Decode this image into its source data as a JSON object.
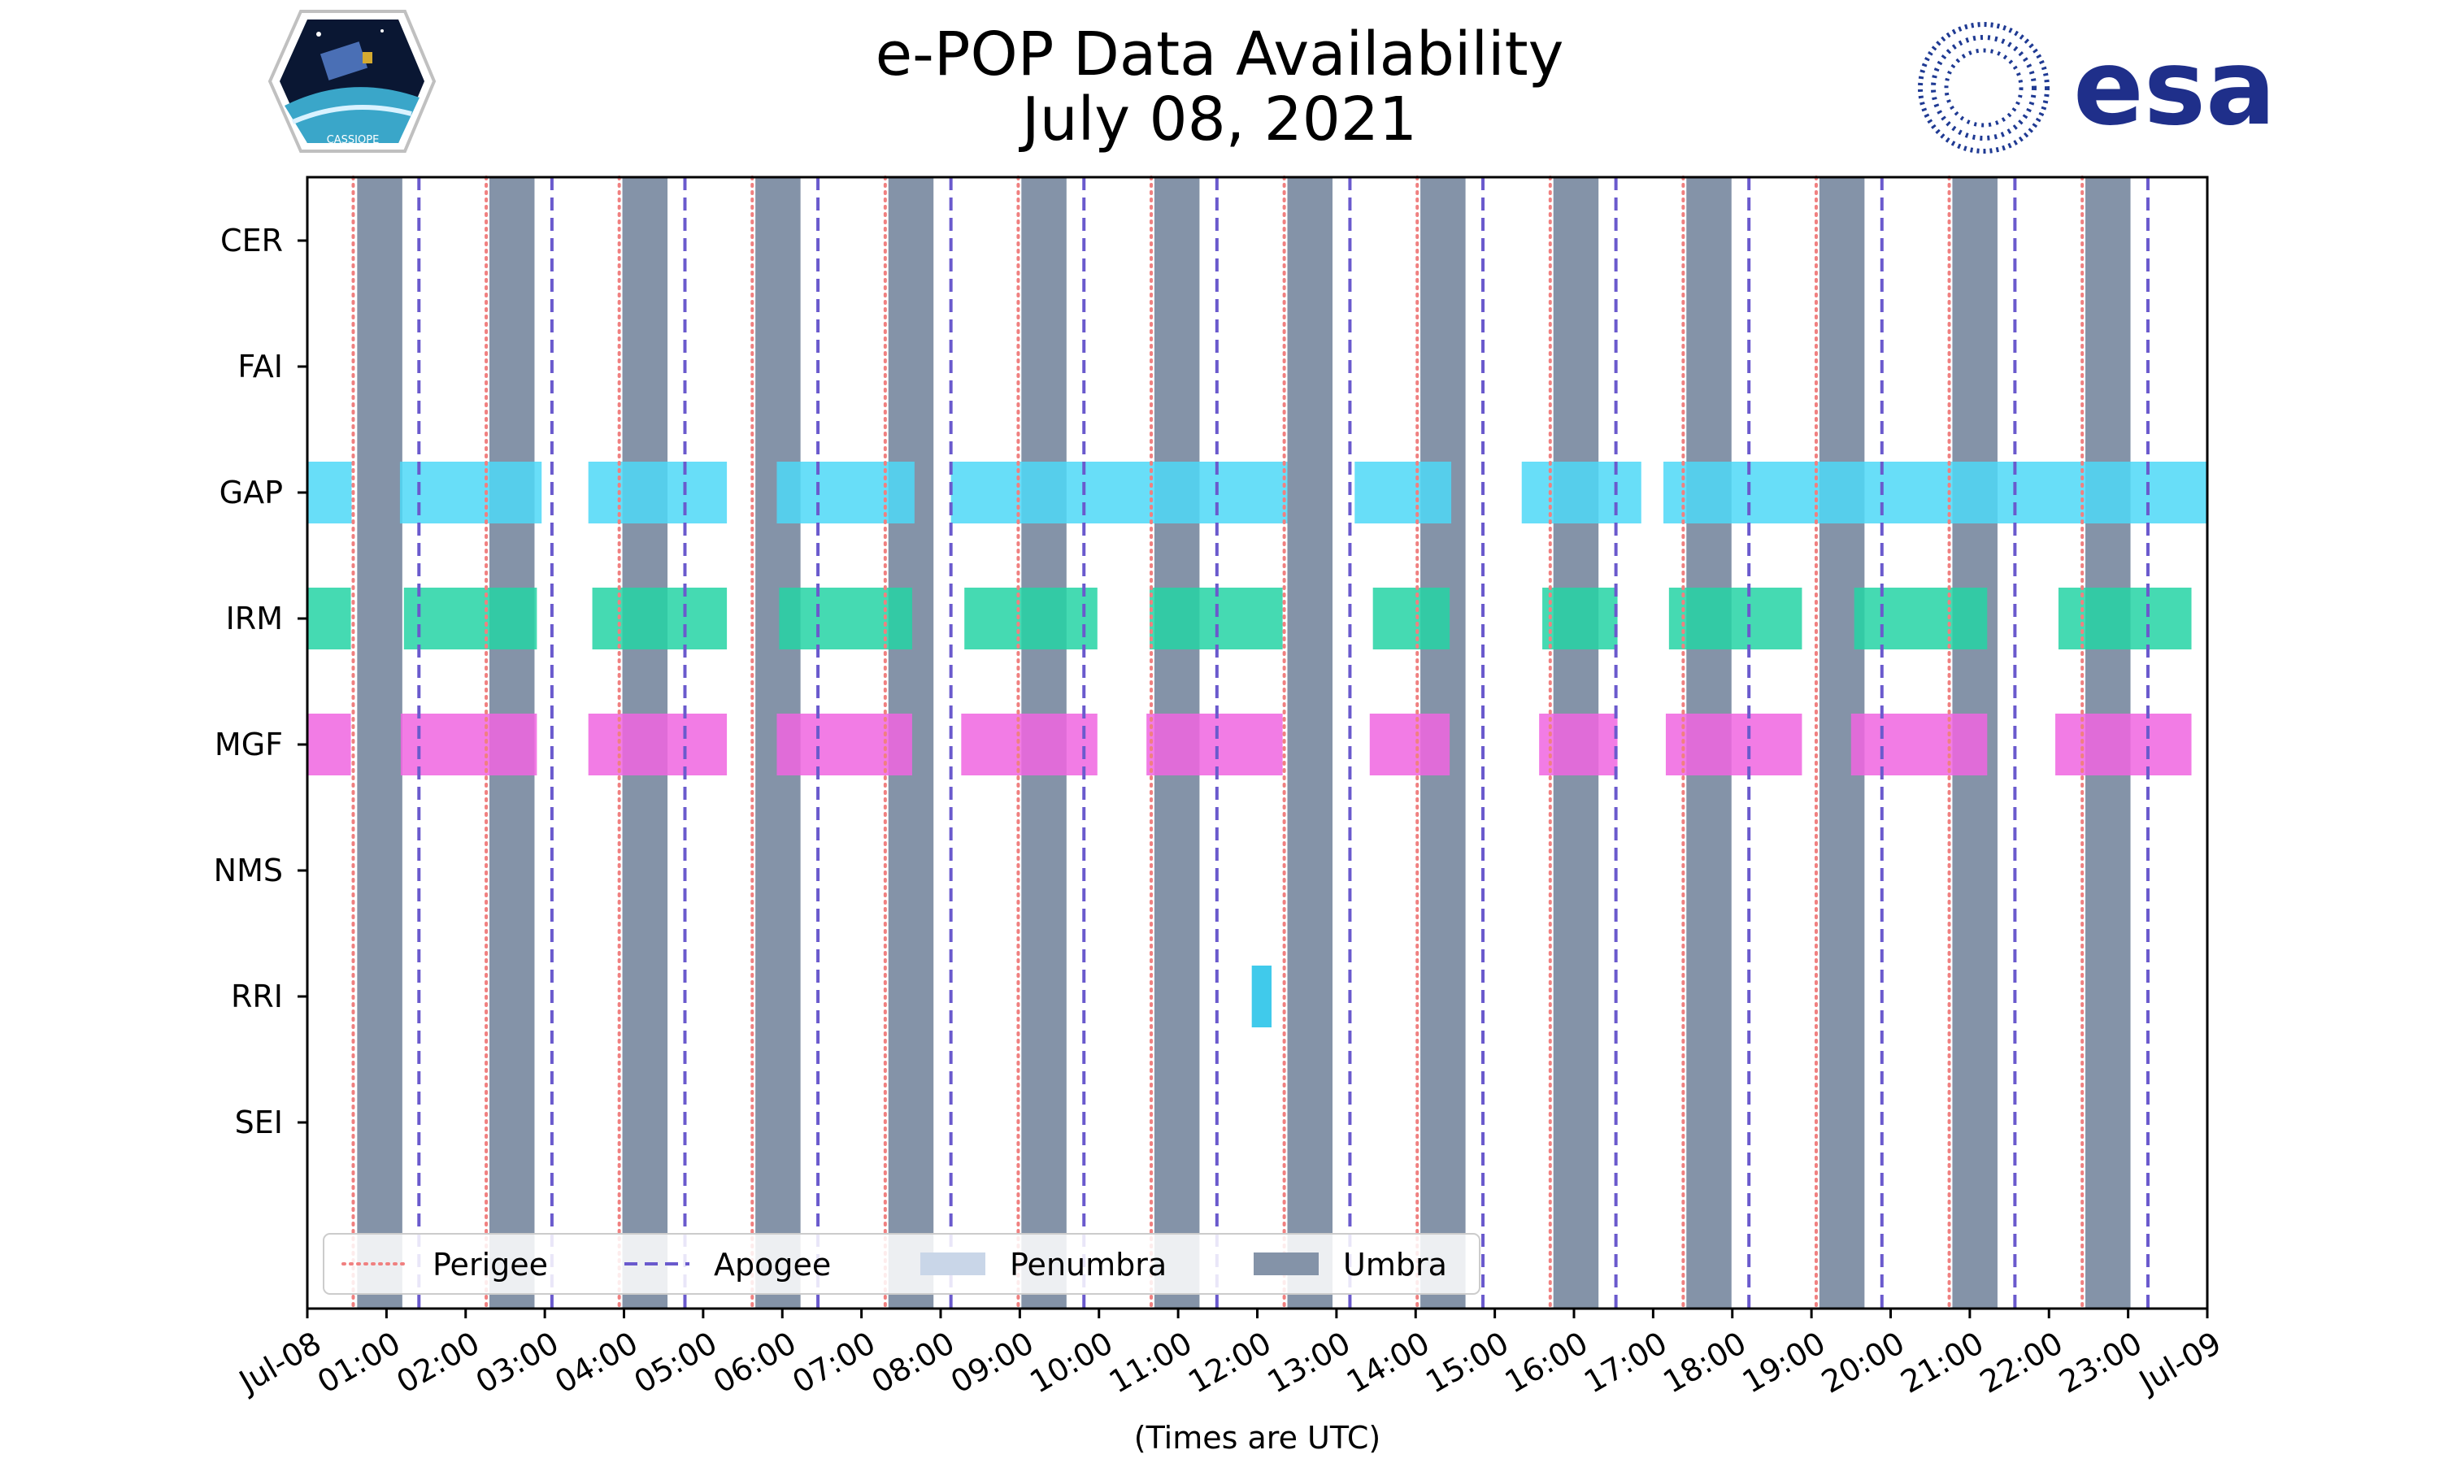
{
  "chart_data": {
    "type": "timeline",
    "title_line1": "e-POP Data Availability",
    "title_line2": "July 08, 2021",
    "xlabel": "(Times are UTC)",
    "xlim_hours": [
      0,
      24
    ],
    "x_tick_labels": [
      "Jul-08",
      "01:00",
      "02:00",
      "03:00",
      "04:00",
      "05:00",
      "06:00",
      "07:00",
      "08:00",
      "09:00",
      "10:00",
      "11:00",
      "12:00",
      "13:00",
      "14:00",
      "15:00",
      "16:00",
      "17:00",
      "18:00",
      "19:00",
      "20:00",
      "21:00",
      "22:00",
      "23:00",
      "Jul-09"
    ],
    "instruments": [
      "CER",
      "FAI",
      "GAP",
      "IRM",
      "MGF",
      "NMS",
      "RRI",
      "SEI"
    ],
    "umbra_intervals_hours": [
      [
        0.63,
        1.2
      ],
      [
        2.3,
        2.87
      ],
      [
        3.98,
        4.55
      ],
      [
        5.66,
        6.23
      ],
      [
        7.34,
        7.91
      ],
      [
        9.02,
        9.59
      ],
      [
        10.7,
        11.27
      ],
      [
        12.38,
        12.95
      ],
      [
        14.06,
        14.63
      ],
      [
        15.74,
        16.31
      ],
      [
        17.42,
        17.99
      ],
      [
        19.1,
        19.67
      ],
      [
        20.78,
        21.35
      ],
      [
        22.46,
        23.03
      ]
    ],
    "penumbra_intervals_hours": [],
    "perigee_hours": [
      0.58,
      2.26,
      3.94,
      5.62,
      7.3,
      8.98,
      10.66,
      12.34,
      14.02,
      15.7,
      17.38,
      19.06,
      20.74,
      22.42
    ],
    "apogee_hours": [
      1.41,
      3.09,
      4.77,
      6.45,
      8.13,
      9.81,
      11.49,
      13.17,
      14.85,
      16.53,
      18.21,
      19.89,
      21.57,
      23.25
    ],
    "series": [
      {
        "name": "CER",
        "intervals_hours": []
      },
      {
        "name": "FAI",
        "intervals_hours": []
      },
      {
        "name": "GAP",
        "color": "#4dd8f7",
        "intervals_hours": [
          [
            0.0,
            0.56
          ],
          [
            1.17,
            2.96
          ],
          [
            3.55,
            5.3
          ],
          [
            5.93,
            7.67
          ],
          [
            8.13,
            12.38
          ],
          [
            13.23,
            14.45
          ],
          [
            15.34,
            16.85
          ],
          [
            17.13,
            24.0
          ]
        ]
      },
      {
        "name": "IRM",
        "color": "#25d3a5",
        "intervals_hours": [
          [
            0.0,
            0.55
          ],
          [
            1.22,
            2.9
          ],
          [
            3.6,
            5.3
          ],
          [
            5.96,
            7.64
          ],
          [
            8.3,
            9.98
          ],
          [
            10.64,
            12.32
          ],
          [
            13.46,
            14.43
          ],
          [
            15.6,
            16.55
          ],
          [
            17.2,
            18.88
          ],
          [
            19.54,
            21.22
          ],
          [
            22.12,
            23.8
          ]
        ]
      },
      {
        "name": "MGF",
        "color": "#f065e0",
        "intervals_hours": [
          [
            0.0,
            0.55
          ],
          [
            1.18,
            2.9
          ],
          [
            3.55,
            5.3
          ],
          [
            5.93,
            7.64
          ],
          [
            8.26,
            9.98
          ],
          [
            10.6,
            12.32
          ],
          [
            13.42,
            14.43
          ],
          [
            15.56,
            16.55
          ],
          [
            17.16,
            18.88
          ],
          [
            19.5,
            21.22
          ],
          [
            22.08,
            23.8
          ]
        ]
      },
      {
        "name": "NMS",
        "intervals_hours": []
      },
      {
        "name": "RRI",
        "color": "#1fc1e8",
        "intervals_hours": [
          [
            11.93,
            12.18
          ]
        ]
      },
      {
        "name": "SEI",
        "intervals_hours": []
      }
    ],
    "legend": {
      "position": "lower-left",
      "entries": [
        {
          "label": "Perigee",
          "style": "dotted",
          "color": "#f08080"
        },
        {
          "label": "Apogee",
          "style": "dashed",
          "color": "#6a5acd"
        },
        {
          "label": "Penumbra",
          "style": "patch",
          "color": "#c9d6e8"
        },
        {
          "label": "Umbra",
          "style": "patch",
          "color": "#8493a8"
        }
      ]
    },
    "logos": {
      "left_badge_text": "CASSIOPE",
      "right_logo_text": "esa"
    }
  }
}
